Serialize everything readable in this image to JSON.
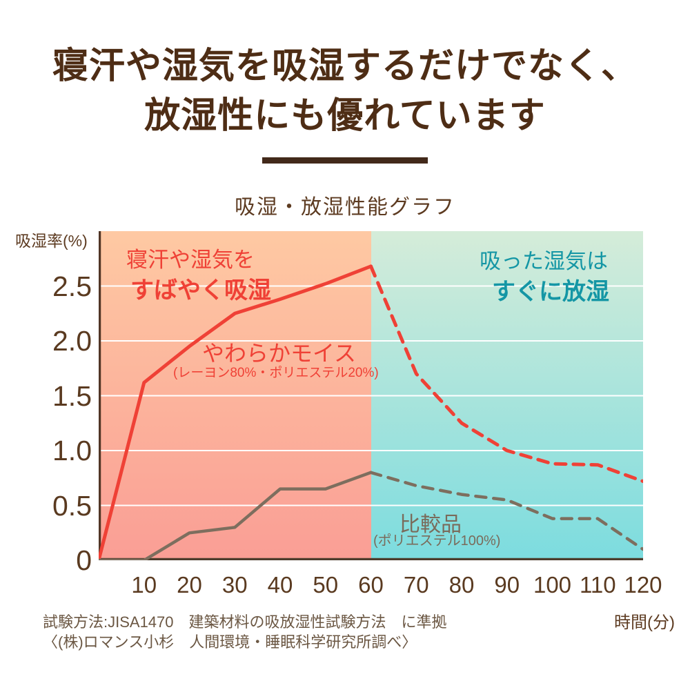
{
  "title": {
    "line1": "寝汗や湿気を吸湿するだけでなく、",
    "line2": "放湿性にも優れています"
  },
  "chart_title": "吸湿・放湿性能グラフ",
  "axes": {
    "y_label": "吸湿率(%)",
    "x_label": "時間(分)"
  },
  "annotations": {
    "absorb_line1": "寝汗や湿気を",
    "absorb_line2": "すばやく吸湿",
    "product_name": "やわらかモイス",
    "product_spec": "(レーヨン80%・ポリエステル20%)",
    "release_line1": "吸った湿気は",
    "release_line2": "すぐに放湿",
    "comparison_name": "比較品",
    "comparison_spec": "(ポリエステル100%)"
  },
  "footer": {
    "line1": "試験方法:JISA1470　建築材料の吸放湿性試験方法　に準拠",
    "line2": "〈(株)ロマンス小杉　人間環境・睡眠科学研究所調べ〉"
  },
  "colors": {
    "title_brown": "#4e2d15",
    "divider_brown": "#42291a",
    "text_brown": "#5d3b21",
    "tick_brown": "#5a3a20",
    "footer_brown": "#6b5743",
    "accent_red": "#ef4136",
    "accent_teal": "#1496a5",
    "comparison_gray": "#7a6b5b",
    "grid_white": "#ffffff",
    "axis_dark": "#4c3c2c"
  },
  "chart_data": {
    "type": "line",
    "title": "吸湿・放湿性能グラフ",
    "xlabel": "時間(分)",
    "ylabel": "吸湿率(%)",
    "xlim": [
      0,
      120
    ],
    "ylim": [
      0,
      3.0
    ],
    "x_ticks": [
      10,
      20,
      30,
      40,
      50,
      60,
      70,
      80,
      90,
      100,
      110,
      120
    ],
    "y_ticks": [
      "0",
      "0.5",
      "1.0",
      "1.5",
      "2.0",
      "2.5"
    ],
    "y_tick_values": [
      0,
      0.5,
      1.0,
      1.5,
      2.0,
      2.5
    ],
    "grid": "horizontal white gridlines at each y tick",
    "legend_position": "labels drawn inside plot",
    "phase_boundary_x": 60,
    "regions": [
      {
        "id": "absorb-zone",
        "label": "吸湿 (0-60分)",
        "x": [
          0,
          60
        ],
        "bg_top": "#fec9a3",
        "bg_bottom": "#fa9e95"
      },
      {
        "id": "release-zone",
        "label": "放湿 (60-120分)",
        "x": [
          60,
          120
        ],
        "bg_top": "#d5ecd9",
        "bg_bottom": "#7cdcdf"
      }
    ],
    "series": [
      {
        "id": "moist-absorb",
        "name": "やわらかモイス(レーヨン80%・ポリエステル20%) 吸湿",
        "style": "solid",
        "color": "#ef4136",
        "width": 5,
        "x": [
          0,
          10,
          20,
          30,
          40,
          50,
          60
        ],
        "y": [
          0,
          1.62,
          1.95,
          2.25,
          2.38,
          2.52,
          2.68
        ]
      },
      {
        "id": "moist-release",
        "name": "やわらかモイス 放湿",
        "style": "dashed",
        "color": "#ef4136",
        "width": 5,
        "x": [
          60,
          70,
          80,
          90,
          100,
          110,
          120
        ],
        "y": [
          2.68,
          1.7,
          1.25,
          1.0,
          0.88,
          0.87,
          0.72
        ]
      },
      {
        "id": "comp-absorb",
        "name": "比較品(ポリエステル100%) 吸湿",
        "style": "solid",
        "color": "#7d6e5e",
        "width": 4.5,
        "x": [
          0,
          10,
          20,
          30,
          40,
          50,
          60
        ],
        "y": [
          0,
          0,
          0.25,
          0.3,
          0.65,
          0.65,
          0.8
        ]
      },
      {
        "id": "comp-release",
        "name": "比較品 放湿",
        "style": "dashed",
        "color": "#7d6e5e",
        "width": 4.5,
        "x": [
          60,
          70,
          80,
          90,
          100,
          110,
          120
        ],
        "y": [
          0.8,
          0.68,
          0.6,
          0.55,
          0.38,
          0.38,
          0.1
        ]
      }
    ]
  }
}
